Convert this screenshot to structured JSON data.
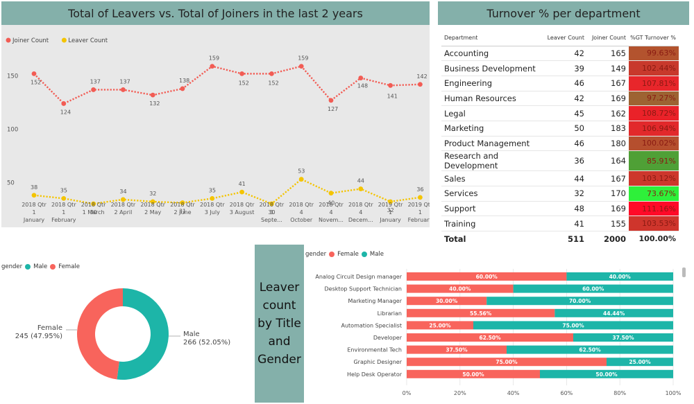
{
  "line_chart": {
    "title": "Total of Leavers vs. Total of  Joiners in the last 2 years",
    "legend": [
      {
        "label": "Joiner Count",
        "color": "#f25c54"
      },
      {
        "label": "Leaver Count",
        "color": "#f4c400"
      }
    ],
    "chart_data": {
      "type": "line",
      "categories": [
        [
          "2018 Qtr",
          "1",
          "January"
        ],
        [
          "2018 Qtr",
          "1",
          "February"
        ],
        [
          "2018 Qtr",
          "1 March"
        ],
        [
          "2018 Qtr",
          "2 April"
        ],
        [
          "2018 Qtr",
          "2 May"
        ],
        [
          "2018 Qtr",
          "2 June"
        ],
        [
          "2018 Qtr",
          "3 July"
        ],
        [
          "2018 Qtr",
          "3 August"
        ],
        [
          "2018 Qtr",
          "3",
          "Septe..."
        ],
        [
          "2018 Qtr",
          "4",
          "October"
        ],
        [
          "2018 Qtr",
          "4",
          "Novem..."
        ],
        [
          "2018 Qtr",
          "4",
          "Decem..."
        ],
        [
          "2019 Qtr",
          "1",
          "January"
        ],
        [
          "2019 Qtr",
          "1",
          "February"
        ]
      ],
      "series": [
        {
          "name": "Joiner Count",
          "color": "#f25c54",
          "values": [
            152,
            124,
            137,
            137,
            132,
            138,
            159,
            152,
            152,
            159,
            127,
            148,
            141,
            142
          ]
        },
        {
          "name": "Leaver Count",
          "color": "#f4c400",
          "values": [
            38,
            35,
            30,
            34,
            32,
            31,
            35,
            41,
            30,
            53,
            40,
            44,
            32,
            36
          ]
        }
      ],
      "yticks": [
        50,
        100,
        150
      ],
      "ylim": [
        20,
        165
      ]
    }
  },
  "turnover": {
    "title": "Turnover % per department",
    "headers": {
      "dept": "Department",
      "leaver": "Leaver Count",
      "joiner": "Joiner Count",
      "pct": "%GT Turnover %"
    },
    "rows": [
      {
        "dept": "Accounting",
        "leaver": "42",
        "joiner": "165",
        "pct": "99.63%",
        "color": "#b3532e"
      },
      {
        "dept": "Business Development",
        "leaver": "39",
        "joiner": "149",
        "pct": "102.44%",
        "color": "#c8392c"
      },
      {
        "dept": "Engineering",
        "leaver": "46",
        "joiner": "167",
        "pct": "107.81%",
        "color": "#e8262b"
      },
      {
        "dept": "Human Resources",
        "leaver": "42",
        "joiner": "169",
        "pct": "97.27%",
        "color": "#9d6332"
      },
      {
        "dept": "Legal",
        "leaver": "45",
        "joiner": "162",
        "pct": "108.72%",
        "color": "#ea2229"
      },
      {
        "dept": "Marketing",
        "leaver": "50",
        "joiner": "183",
        "pct": "106.94%",
        "color": "#e2292b"
      },
      {
        "dept": "Product Management",
        "leaver": "46",
        "joiner": "180",
        "pct": "100.02%",
        "color": "#b54f2e"
      },
      {
        "dept": "Research and Development",
        "leaver": "36",
        "joiner": "164",
        "pct": "85.91%",
        "color": "#4fa036"
      },
      {
        "dept": "Sales",
        "leaver": "44",
        "joiner": "167",
        "pct": "103.12%",
        "color": "#cd372c"
      },
      {
        "dept": "Services",
        "leaver": "32",
        "joiner": "170",
        "pct": "73.67%",
        "color": "#2ef03a"
      },
      {
        "dept": "Support",
        "leaver": "48",
        "joiner": "169",
        "pct": "111.16%",
        "color": "#ff0a28"
      },
      {
        "dept": "Training",
        "leaver": "41",
        "joiner": "155",
        "pct": "103.53%",
        "color": "#cf352c"
      }
    ],
    "total": {
      "label": "Total",
      "leaver": "511",
      "joiner": "2000",
      "pct": "100.00%"
    }
  },
  "donut": {
    "legend_title": "gender",
    "legend": [
      {
        "label": "Male",
        "color": "#1db5a8"
      },
      {
        "label": "Female",
        "color": "#f8645c"
      }
    ],
    "chart_data": {
      "type": "pie",
      "slices": [
        {
          "name": "Male",
          "value": 266,
          "pct": "52.05%",
          "label": "Male",
          "sublabel": "266 (52.05%)",
          "color": "#1db5a8"
        },
        {
          "name": "Female",
          "value": 245,
          "pct": "47.95%",
          "label": "Female",
          "sublabel": "245 (47.95%)",
          "color": "#f8645c"
        }
      ]
    }
  },
  "bar_title_box": [
    "Leaver",
    "count",
    "by Title",
    "and",
    "Gender"
  ],
  "bar_chart": {
    "legend_title": "gender",
    "legend": [
      {
        "label": "Female",
        "color": "#f8645c"
      },
      {
        "label": "Male",
        "color": "#1db5a8"
      }
    ],
    "chart_data": {
      "type": "bar",
      "stacked": "100%",
      "categories": [
        "Analog Circuit Design manager",
        "Desktop Support Technician",
        "Marketing Manager",
        "Librarian",
        "Automation Specialist",
        "Developer",
        "Environmental Tech",
        "Graphic Designer",
        "Help Desk Operator"
      ],
      "series": [
        {
          "name": "Female",
          "color": "#f8645c",
          "values": [
            60,
            40,
            30,
            55.56,
            25,
            62.5,
            37.5,
            75,
            50
          ],
          "labels": [
            "60.00%",
            "40.00%",
            "30.00%",
            "55.56%",
            "25.00%",
            "62.50%",
            "37.50%",
            "75.00%",
            "50.00%"
          ]
        },
        {
          "name": "Male",
          "color": "#1db5a8",
          "values": [
            40,
            60,
            70,
            44.44,
            75,
            37.5,
            62.5,
            25,
            50
          ],
          "labels": [
            "40.00%",
            "60.00%",
            "70.00%",
            "44.44%",
            "75.00%",
            "37.50%",
            "62.50%",
            "25.00%",
            "50.00%"
          ]
        }
      ],
      "xticks": [
        "0%",
        "20%",
        "40%",
        "60%",
        "80%",
        "100%"
      ]
    }
  }
}
